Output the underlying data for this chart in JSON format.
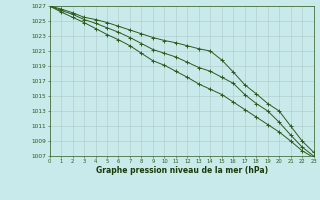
{
  "x": [
    0,
    1,
    2,
    3,
    4,
    5,
    6,
    7,
    8,
    9,
    10,
    11,
    12,
    13,
    14,
    15,
    16,
    17,
    18,
    19,
    20,
    21,
    22,
    23
  ],
  "line1": [
    1027.0,
    1026.6,
    1026.1,
    1025.5,
    1025.2,
    1024.8,
    1024.3,
    1023.8,
    1023.3,
    1022.8,
    1022.4,
    1022.1,
    1021.7,
    1021.3,
    1021.0,
    1019.8,
    1018.2,
    1016.5,
    1015.3,
    1014.0,
    1013.0,
    1011.0,
    1009.0,
    1007.5
  ],
  "line2": [
    1027.0,
    1026.4,
    1025.9,
    1025.2,
    1024.7,
    1024.1,
    1023.5,
    1022.8,
    1022.0,
    1021.2,
    1020.7,
    1020.2,
    1019.5,
    1018.8,
    1018.3,
    1017.5,
    1016.7,
    1015.2,
    1014.0,
    1013.0,
    1011.5,
    1009.8,
    1008.2,
    1007.0
  ],
  "line3": [
    1027.0,
    1026.2,
    1025.5,
    1024.8,
    1024.0,
    1023.2,
    1022.5,
    1021.7,
    1020.7,
    1019.7,
    1019.1,
    1018.3,
    1017.5,
    1016.6,
    1015.9,
    1015.2,
    1014.2,
    1013.2,
    1012.2,
    1011.2,
    1010.2,
    1009.0,
    1007.7,
    1006.8
  ],
  "xlim": [
    0,
    23
  ],
  "ylim": [
    1007,
    1027
  ],
  "yticks": [
    1007,
    1009,
    1011,
    1013,
    1015,
    1017,
    1019,
    1021,
    1023,
    1025,
    1027
  ],
  "xticks": [
    0,
    1,
    2,
    3,
    4,
    5,
    6,
    7,
    8,
    9,
    10,
    11,
    12,
    13,
    14,
    15,
    16,
    17,
    18,
    19,
    20,
    21,
    22,
    23
  ],
  "line_color": "#2d5a1b",
  "bg_color": "#c8eaea",
  "grid_color": "#b0c8c8",
  "xlabel": "Graphe pression niveau de la mer (hPa)",
  "xlabel_color": "#1a3a0a",
  "marker": "+"
}
